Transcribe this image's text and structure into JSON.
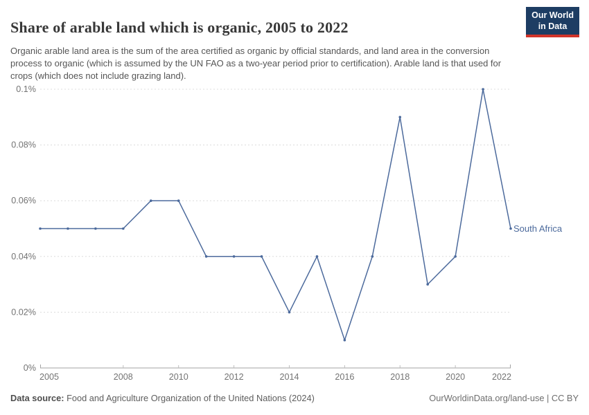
{
  "header": {
    "title": "Share of arable land which is organic, 2005 to 2022",
    "subtitle": "Organic arable land area is the sum of the area certified as organic by official standards, and land area in the conversion process to organic (which is assumed by the UN FAO as a two-year period prior to certification). Arable land is that used for crops (which does not include grazing land).",
    "logo": {
      "line1": "Our World",
      "line2": "in Data"
    }
  },
  "chart_data": {
    "type": "line",
    "title": "Share of arable land which is organic, 2005 to 2022",
    "x": [
      2005,
      2006,
      2007,
      2008,
      2009,
      2010,
      2011,
      2012,
      2013,
      2014,
      2015,
      2016,
      2017,
      2018,
      2019,
      2020,
      2021,
      2022
    ],
    "series": [
      {
        "name": "South Africa",
        "values": [
          0.05,
          0.05,
          0.05,
          0.05,
          0.06,
          0.06,
          0.04,
          0.04,
          0.04,
          0.02,
          0.04,
          0.01,
          0.04,
          0.09,
          0.03,
          0.04,
          0.1,
          0.05
        ],
        "color": "#4C6A9C"
      }
    ],
    "xlabel": "",
    "ylabel": "",
    "unit": "%",
    "ylim": [
      0,
      0.1
    ],
    "yticks": [
      0,
      0.02,
      0.04,
      0.06,
      0.08,
      0.1
    ],
    "ytick_labels": [
      "0%",
      "0.02%",
      "0.04%",
      "0.06%",
      "0.08%",
      "0.1%"
    ],
    "xticks": [
      2005,
      2008,
      2010,
      2012,
      2014,
      2016,
      2018,
      2020,
      2022
    ],
    "grid": "horizontal-dashed",
    "legend_position": "end-of-line-label"
  },
  "footer": {
    "source_label": "Data source:",
    "source_text": " Food and Agriculture Organization of the United Nations (2024)",
    "credit": "OurWorldinData.org/land-use | CC BY"
  },
  "colors": {
    "line": "#4C6A9C",
    "grid": "#dcdcdc",
    "axis": "#a3a3a3",
    "tick_label": "#737373",
    "logo_bg": "#1d3d63",
    "logo_bar": "#d1342a"
  }
}
